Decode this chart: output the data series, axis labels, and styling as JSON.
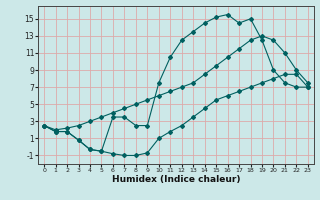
{
  "xlabel": "Humidex (Indice chaleur)",
  "background_color": "#cce8e8",
  "grid_color": "#ddaaaa",
  "line_color": "#006060",
  "xlim": [
    -0.5,
    23.5
  ],
  "ylim": [
    -2,
    16.5
  ],
  "xticks": [
    0,
    1,
    2,
    3,
    4,
    5,
    6,
    7,
    8,
    9,
    10,
    11,
    12,
    13,
    14,
    15,
    16,
    17,
    18,
    19,
    20,
    21,
    22,
    23
  ],
  "yticks": [
    -1,
    1,
    3,
    5,
    7,
    9,
    11,
    13,
    15
  ],
  "line1_y": [
    2.5,
    1.8,
    1.8,
    0.8,
    -0.3,
    -0.5,
    -0.8,
    -1.0,
    -1.0,
    -0.7,
    1.0,
    1.8,
    2.5,
    3.5,
    4.5,
    5.5,
    6.0,
    6.5,
    7.0,
    7.5,
    8.0,
    8.5,
    8.5,
    7.0
  ],
  "line2_y": [
    2.5,
    1.8,
    1.8,
    0.8,
    -0.3,
    -0.5,
    3.5,
    3.5,
    2.5,
    2.5,
    7.5,
    10.5,
    12.5,
    13.5,
    14.5,
    15.2,
    15.5,
    14.5,
    15.0,
    12.5,
    9.0,
    7.5,
    7.0,
    7.0
  ],
  "line3_y": [
    2.5,
    2.0,
    2.2,
    2.5,
    3.0,
    3.5,
    4.0,
    4.5,
    5.0,
    5.5,
    6.0,
    6.5,
    7.0,
    7.5,
    8.5,
    9.5,
    10.5,
    11.5,
    12.5,
    13.0,
    12.5,
    11.0,
    9.0,
    7.5
  ]
}
